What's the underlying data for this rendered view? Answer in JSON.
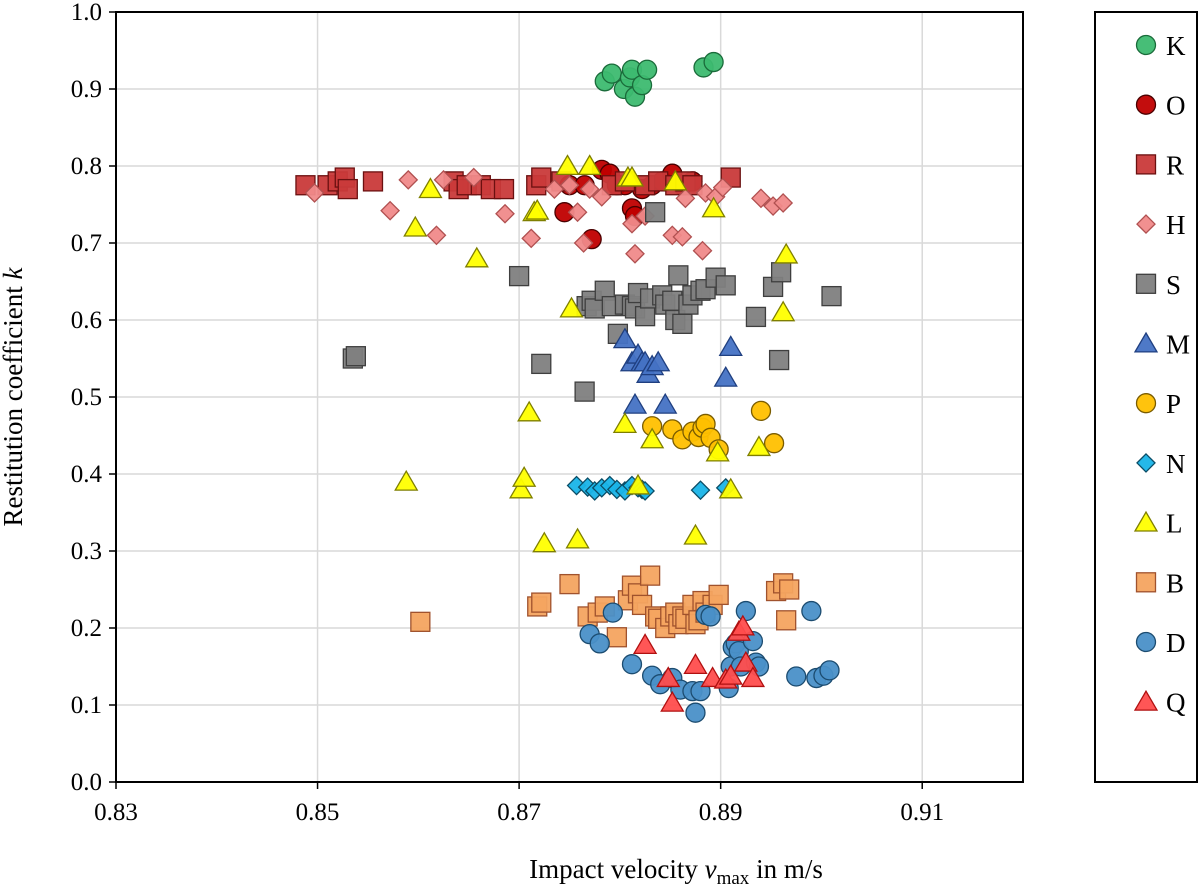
{
  "chart_data": {
    "type": "scatter",
    "title": "",
    "xlabel": {
      "pre": "Impact velocity ",
      "var": "v",
      "sub": "max",
      "post": " in m/s"
    },
    "ylabel": {
      "pre": "Restitution coefficient ",
      "var": "k"
    },
    "xlim": [
      0.83,
      0.92
    ],
    "ylim": [
      0.0,
      1.0
    ],
    "x_ticks": [
      0.83,
      0.85,
      0.87,
      0.89,
      0.91
    ],
    "x_tick_labels": [
      "0.83",
      "0.85",
      "0.87",
      "0.89",
      "0.91"
    ],
    "y_ticks": [
      0.0,
      0.1,
      0.2,
      0.3,
      0.4,
      0.5,
      0.6,
      0.7,
      0.8,
      0.9,
      1.0
    ],
    "y_tick_labels": [
      "0.0",
      "0.1",
      "0.2",
      "0.3",
      "0.4",
      "0.5",
      "0.6",
      "0.7",
      "0.8",
      "0.9",
      "1.0"
    ],
    "grid": true,
    "legend_position": "right",
    "series": [
      {
        "name": "K",
        "marker": "circle",
        "fill": "#3dbb70",
        "stroke": "#1a6b3a",
        "x": [
          0.8785,
          0.8792,
          0.8804,
          0.881,
          0.8812,
          0.8815,
          0.8822,
          0.8827,
          0.8883,
          0.8893
        ],
        "y": [
          0.91,
          0.92,
          0.9,
          0.915,
          0.925,
          0.89,
          0.905,
          0.925,
          0.928,
          0.935
        ]
      },
      {
        "name": "O",
        "marker": "circle",
        "fill": "#c00000",
        "stroke": "#4a0000",
        "x": [
          0.8745,
          0.875,
          0.8765,
          0.8772,
          0.8782,
          0.879,
          0.8797,
          0.8805,
          0.8812,
          0.8815,
          0.8822,
          0.8832,
          0.8842,
          0.8852,
          0.8862,
          0.8872
        ],
        "y": [
          0.74,
          0.775,
          0.775,
          0.705,
          0.795,
          0.79,
          0.775,
          0.775,
          0.745,
          0.735,
          0.77,
          0.775,
          0.78,
          0.79,
          0.775,
          0.78
        ]
      },
      {
        "name": "R",
        "marker": "square",
        "fill": "#c93a3a",
        "stroke": "#6b1010",
        "x": [
          0.8488,
          0.851,
          0.852,
          0.8527,
          0.853,
          0.8555,
          0.8635,
          0.864,
          0.8648,
          0.8662,
          0.8672,
          0.8685,
          0.8717,
          0.8722,
          0.8742,
          0.8792,
          0.8805,
          0.8825,
          0.8838,
          0.8855,
          0.8865,
          0.8872,
          0.891
        ],
        "y": [
          0.775,
          0.775,
          0.78,
          0.785,
          0.77,
          0.78,
          0.78,
          0.77,
          0.775,
          0.775,
          0.77,
          0.77,
          0.775,
          0.785,
          0.78,
          0.775,
          0.78,
          0.775,
          0.78,
          0.775,
          0.78,
          0.775,
          0.785
        ]
      },
      {
        "name": "H",
        "marker": "diamond",
        "fill": "#f08a8a",
        "stroke": "#b05050",
        "x": [
          0.8497,
          0.8572,
          0.859,
          0.8618,
          0.8625,
          0.8655,
          0.8686,
          0.8712,
          0.8735,
          0.875,
          0.8758,
          0.8764,
          0.877,
          0.8782,
          0.8812,
          0.8815,
          0.8825,
          0.8852,
          0.8862,
          0.8865,
          0.8882,
          0.8885,
          0.8895,
          0.8902,
          0.894,
          0.8952,
          0.8962
        ],
        "y": [
          0.765,
          0.742,
          0.782,
          0.71,
          0.782,
          0.785,
          0.738,
          0.706,
          0.77,
          0.775,
          0.74,
          0.7,
          0.77,
          0.76,
          0.725,
          0.686,
          0.735,
          0.71,
          0.708,
          0.758,
          0.69,
          0.765,
          0.76,
          0.772,
          0.758,
          0.748,
          0.752
        ]
      },
      {
        "name": "S",
        "marker": "square",
        "fill": "#7f7f7f",
        "stroke": "#3f3f3f",
        "x": [
          0.8535,
          0.8538,
          0.87,
          0.8722,
          0.8765,
          0.8767,
          0.8772,
          0.8775,
          0.8785,
          0.8792,
          0.8798,
          0.8805,
          0.8812,
          0.8815,
          0.8818,
          0.8825,
          0.883,
          0.8835,
          0.8842,
          0.8845,
          0.8852,
          0.8855,
          0.8858,
          0.8862,
          0.8868,
          0.8872,
          0.888,
          0.8885,
          0.8895,
          0.8905,
          0.8935,
          0.8952,
          0.8958,
          0.896,
          0.901
        ],
        "y": [
          0.55,
          0.553,
          0.657,
          0.543,
          0.507,
          0.618,
          0.625,
          0.615,
          0.638,
          0.618,
          0.582,
          0.62,
          0.618,
          0.615,
          0.635,
          0.605,
          0.628,
          0.74,
          0.632,
          0.62,
          0.625,
          0.6,
          0.658,
          0.595,
          0.62,
          0.632,
          0.638,
          0.64,
          0.655,
          0.645,
          0.604,
          0.643,
          0.548,
          0.662,
          0.631
        ]
      },
      {
        "name": "M",
        "marker": "triangle",
        "fill": "#4472c4",
        "stroke": "#1f3f80",
        "x": [
          0.8805,
          0.8812,
          0.8815,
          0.8818,
          0.8822,
          0.8825,
          0.8828,
          0.8832,
          0.8838,
          0.8845,
          0.8905,
          0.891
        ],
        "y": [
          0.575,
          0.545,
          0.49,
          0.555,
          0.545,
          0.545,
          0.53,
          0.54,
          0.545,
          0.49,
          0.525,
          0.565
        ]
      },
      {
        "name": "P",
        "marker": "circle",
        "fill": "#ffc000",
        "stroke": "#7a5c00",
        "x": [
          0.8832,
          0.8852,
          0.8862,
          0.8872,
          0.8878,
          0.8882,
          0.8885,
          0.889,
          0.8898,
          0.894,
          0.8953
        ],
        "y": [
          0.462,
          0.458,
          0.445,
          0.455,
          0.448,
          0.46,
          0.465,
          0.447,
          0.432,
          0.482,
          0.44
        ]
      },
      {
        "name": "N",
        "marker": "diamond",
        "fill": "#19b4e8",
        "stroke": "#0b4d66",
        "x": [
          0.8757,
          0.8768,
          0.8775,
          0.8782,
          0.879,
          0.8797,
          0.8805,
          0.8812,
          0.8818,
          0.8822,
          0.8825,
          0.888,
          0.8905
        ],
        "y": [
          0.385,
          0.383,
          0.378,
          0.382,
          0.385,
          0.38,
          0.378,
          0.385,
          0.382,
          0.38,
          0.378,
          0.379,
          0.382
        ]
      },
      {
        "name": "L",
        "marker": "triangle",
        "fill": "#ffff00",
        "stroke": "#7f7f00",
        "x": [
          0.8588,
          0.8597,
          0.8612,
          0.8658,
          0.8702,
          0.8705,
          0.871,
          0.8715,
          0.8718,
          0.8725,
          0.8748,
          0.8752,
          0.8758,
          0.877,
          0.8805,
          0.8808,
          0.8812,
          0.8818,
          0.8832,
          0.8855,
          0.8875,
          0.8893,
          0.8897,
          0.891,
          0.8938,
          0.8962,
          0.8965
        ],
        "y": [
          0.39,
          0.72,
          0.77,
          0.68,
          0.38,
          0.395,
          0.48,
          0.74,
          0.742,
          0.31,
          0.8,
          0.615,
          0.315,
          0.8,
          0.465,
          0.785,
          0.785,
          0.385,
          0.445,
          0.78,
          0.32,
          0.745,
          0.428,
          0.38,
          0.435,
          0.61,
          0.685
        ]
      },
      {
        "name": "B",
        "marker": "square",
        "fill": "#f4a460",
        "stroke": "#a0522d",
        "x": [
          0.8602,
          0.8718,
          0.8722,
          0.875,
          0.8768,
          0.8778,
          0.8785,
          0.8797,
          0.8808,
          0.8812,
          0.8818,
          0.8822,
          0.883,
          0.8835,
          0.8838,
          0.8845,
          0.885,
          0.8855,
          0.8858,
          0.8862,
          0.8865,
          0.8872,
          0.8875,
          0.8878,
          0.8882,
          0.8885,
          0.8892,
          0.8898,
          0.8955,
          0.8962,
          0.8965,
          0.8968
        ],
        "y": [
          0.208,
          0.228,
          0.233,
          0.257,
          0.215,
          0.22,
          0.228,
          0.188,
          0.236,
          0.255,
          0.245,
          0.23,
          0.268,
          0.215,
          0.212,
          0.2,
          0.215,
          0.22,
          0.205,
          0.215,
          0.212,
          0.23,
          0.205,
          0.21,
          0.235,
          0.22,
          0.23,
          0.243,
          0.248,
          0.258,
          0.21,
          0.25
        ]
      },
      {
        "name": "D",
        "marker": "circle",
        "fill": "#4a90c8",
        "stroke": "#1c4c70",
        "x": [
          0.877,
          0.878,
          0.8793,
          0.8812,
          0.8832,
          0.884,
          0.8852,
          0.886,
          0.8872,
          0.8875,
          0.888,
          0.8885,
          0.889,
          0.8908,
          0.891,
          0.8912,
          0.8915,
          0.8918,
          0.892,
          0.8925,
          0.8932,
          0.8935,
          0.8938,
          0.8975,
          0.899,
          0.8995,
          0.9002,
          0.9008
        ],
        "y": [
          0.192,
          0.18,
          0.22,
          0.153,
          0.138,
          0.127,
          0.135,
          0.12,
          0.118,
          0.09,
          0.118,
          0.217,
          0.215,
          0.122,
          0.15,
          0.175,
          0.18,
          0.17,
          0.15,
          0.222,
          0.183,
          0.155,
          0.15,
          0.137,
          0.222,
          0.135,
          0.138,
          0.145
        ]
      },
      {
        "name": "Q",
        "marker": "triangle",
        "fill": "#ff4d4d",
        "stroke": "#b01010",
        "x": [
          0.8825,
          0.8848,
          0.8852,
          0.8875,
          0.8892,
          0.8905,
          0.891,
          0.8918,
          0.8922,
          0.8925,
          0.8932
        ],
        "y": [
          0.178,
          0.135,
          0.103,
          0.152,
          0.135,
          0.133,
          0.138,
          0.195,
          0.202,
          0.155,
          0.135
        ]
      }
    ]
  }
}
